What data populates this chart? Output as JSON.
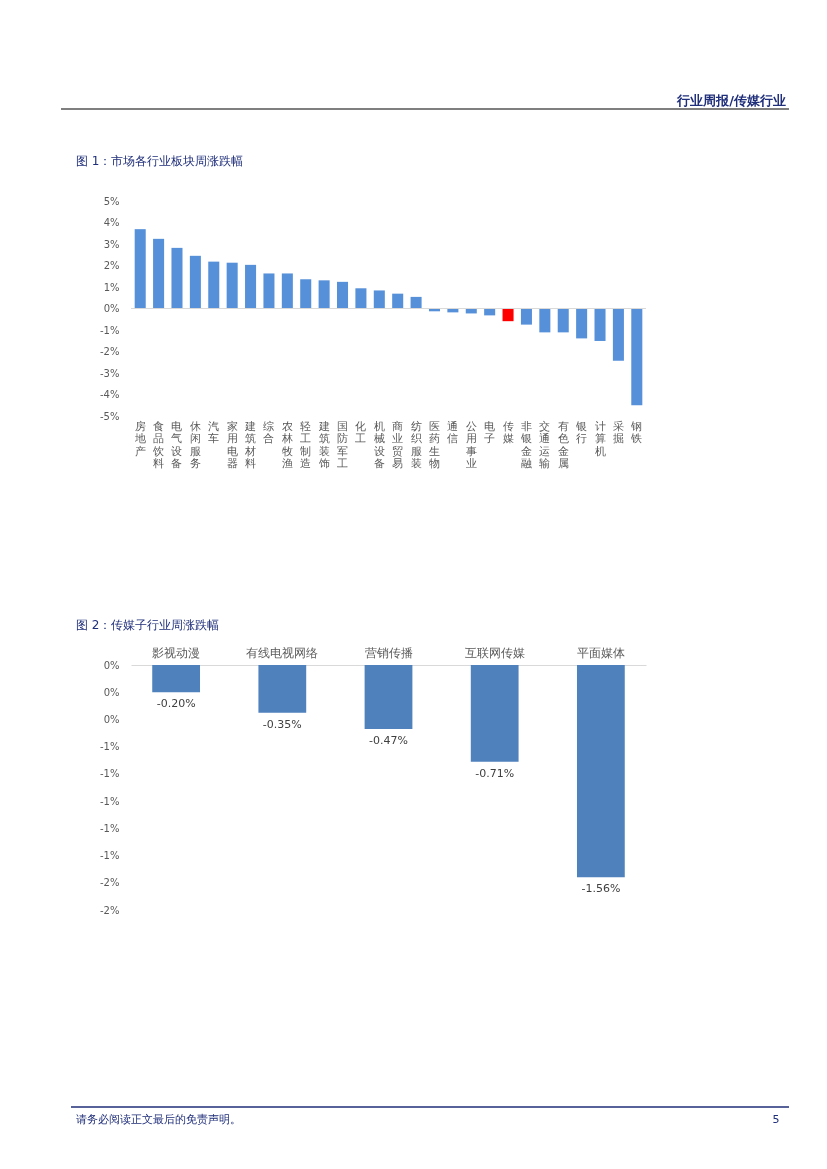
{
  "chart_data": [
    {
      "type": "bar",
      "title": "图 1：市场各行业板块周涨跌幅",
      "annotations": [
        "行业周报/传媒行业"
      ],
      "categories": [
        "房地产",
        "食品饮料",
        "电气设备",
        "休闲服务",
        "汽车",
        "家用电器",
        "建筑材料",
        "综合",
        "农林牧渔",
        "轻工制造",
        "建筑装饰",
        "国防军工",
        "化工",
        "机械设备",
        "商业贸易",
        "纺织服装",
        "医药生物",
        "通信",
        "公用事业",
        "电子",
        "传媒",
        "非银金融",
        "交通运输",
        "有色金属",
        "银行",
        "计算机",
        "采掘",
        "钢铁"
      ],
      "values": [
        3.69,
        3.24,
        2.82,
        2.45,
        2.18,
        2.13,
        2.03,
        1.63,
        1.63,
        1.36,
        1.31,
        1.24,
        0.94,
        0.84,
        0.69,
        0.54,
        -0.13,
        -0.18,
        -0.23,
        -0.32,
        -0.59,
        -0.75,
        -1.11,
        -1.11,
        -1.39,
        -1.51,
        -2.43,
        -4.5
      ],
      "colors": [
        "#5590d9",
        "#5590d9",
        "#5590d9",
        "#5590d9",
        "#5590d9",
        "#5590d9",
        "#5590d9",
        "#5590d9",
        "#5590d9",
        "#5590d9",
        "#5590d9",
        "#5590d9",
        "#5590d9",
        "#5590d9",
        "#5590d9",
        "#5590d9",
        "#5590d9",
        "#5590d9",
        "#5590d9",
        "#5590d9",
        "#ff0000",
        "#5590d9",
        "#5590d9",
        "#5590d9",
        "#5590d9",
        "#5590d9",
        "#5590d9",
        "#5590d9"
      ],
      "ylim": [
        -5,
        5
      ],
      "yticks": [
        {
          "value": 5,
          "label": "5%"
        },
        {
          "value": 4,
          "label": "4%"
        },
        {
          "value": 3,
          "label": "3%"
        },
        {
          "value": 2,
          "label": "2%"
        },
        {
          "value": 1,
          "label": "1%"
        },
        {
          "value": 0,
          "label": "0%"
        },
        {
          "value": -1,
          "label": "-1%"
        },
        {
          "value": -2,
          "label": "-2%"
        },
        {
          "value": -3,
          "label": "-3%"
        },
        {
          "value": -4,
          "label": "-4%"
        },
        {
          "value": -5,
          "label": "-5%"
        }
      ],
      "ref_lines": [
        {
          "axis": "y",
          "value": 0,
          "color": "#d9d9d9"
        }
      ],
      "grid": false
    },
    {
      "type": "bar",
      "title": "图 2：传媒子行业周涨跌幅",
      "annotations": [
        "请务必阅读正文最后的免责声明。",
        "5"
      ],
      "categories": [
        "影视动漫",
        "有线电视网络",
        "营销传播",
        "互联网传媒",
        "平面媒体"
      ],
      "values": [
        -0.2,
        -0.35,
        -0.47,
        -0.71,
        -1.56
      ],
      "value_labels": [
        "-0.20%",
        "-0.35%",
        "-0.47%",
        "-0.71%",
        "-1.56%"
      ],
      "color": "#4f81bd",
      "ylim": [
        -1.8,
        0
      ],
      "yticks": [
        {
          "value": 0,
          "label": "0%"
        },
        {
          "value": -0.2,
          "label": "0%"
        },
        {
          "value": -0.4,
          "label": "0%"
        },
        {
          "value": -0.6,
          "label": "-1%"
        },
        {
          "value": -0.8,
          "label": "-1%"
        },
        {
          "value": -1.0,
          "label": "-1%"
        },
        {
          "value": -1.2,
          "label": "-1%"
        },
        {
          "value": -1.4,
          "label": "-1%"
        },
        {
          "value": -1.6,
          "label": "-2%"
        },
        {
          "value": -1.8,
          "label": "-2%"
        }
      ],
      "grid": false
    }
  ]
}
